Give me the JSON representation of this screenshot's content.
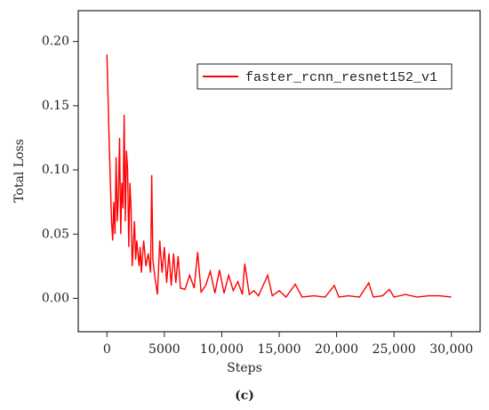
{
  "chart_data": {
    "type": "line",
    "caption": "(c)",
    "xlabel": "Steps",
    "ylabel": "Total Loss",
    "x": [
      0,
      200,
      400,
      500,
      600,
      700,
      800,
      900,
      1000,
      1100,
      1200,
      1300,
      1400,
      1500,
      1600,
      1700,
      1800,
      1900,
      2000,
      2100,
      2200,
      2400,
      2500,
      2600,
      2800,
      2900,
      3000,
      3200,
      3400,
      3600,
      3800,
      3900,
      4000,
      4200,
      4400,
      4600,
      4800,
      5000,
      5200,
      5400,
      5600,
      5800,
      6000,
      6200,
      6400,
      6800,
      7200,
      7600,
      7900,
      8200,
      8600,
      9000,
      9400,
      9800,
      10200,
      10600,
      11000,
      11400,
      11800,
      12000,
      12400,
      12800,
      13200,
      13600,
      14000,
      14400,
      15000,
      15600,
      16400,
      17000,
      18000,
      19000,
      19800,
      20200,
      21000,
      22000,
      22800,
      23200,
      24000,
      24600,
      25000,
      26000,
      27000,
      28000,
      29000,
      30000
    ],
    "series": [
      {
        "name": "faster_rcnn_resnet152_v1",
        "color": "#ff0000",
        "values": [
          0.19,
          0.12,
          0.06,
          0.045,
          0.075,
          0.05,
          0.11,
          0.06,
          0.08,
          0.125,
          0.05,
          0.09,
          0.07,
          0.143,
          0.06,
          0.115,
          0.1,
          0.04,
          0.09,
          0.07,
          0.025,
          0.06,
          0.03,
          0.045,
          0.025,
          0.04,
          0.02,
          0.045,
          0.025,
          0.035,
          0.02,
          0.096,
          0.03,
          0.015,
          0.003,
          0.045,
          0.02,
          0.04,
          0.012,
          0.035,
          0.01,
          0.035,
          0.012,
          0.033,
          0.008,
          0.007,
          0.018,
          0.008,
          0.036,
          0.005,
          0.01,
          0.021,
          0.004,
          0.022,
          0.004,
          0.018,
          0.006,
          0.013,
          0.003,
          0.027,
          0.003,
          0.006,
          0.002,
          0.01,
          0.018,
          0.002,
          0.006,
          0.001,
          0.011,
          0.001,
          0.002,
          0.001,
          0.01,
          0.001,
          0.002,
          0.001,
          0.012,
          0.001,
          0.002,
          0.007,
          0.001,
          0.003,
          0.001,
          0.002,
          0.002,
          0.001
        ]
      }
    ],
    "xlim": [
      -2500,
      32500
    ],
    "xticks": [
      0,
      5000,
      {
        "value": 10000,
        "label": "10,000"
      },
      {
        "value": 15000,
        "label": "15,000"
      },
      {
        "value": 20000,
        "label": "20,000"
      },
      {
        "value": 25000,
        "label": "25,000"
      },
      {
        "value": 30000,
        "label": "30,000"
      }
    ],
    "ylim": [
      -0.026,
      0.224
    ],
    "yticks": [
      {
        "value": 0,
        "label": "0.00"
      },
      {
        "value": 0.05,
        "label": "0.05"
      },
      {
        "value": 0.1,
        "label": "0.10"
      },
      {
        "value": 0.15,
        "label": "0.15"
      },
      {
        "value": 0.2,
        "label": "0.20"
      }
    ],
    "legend": "upper right"
  }
}
